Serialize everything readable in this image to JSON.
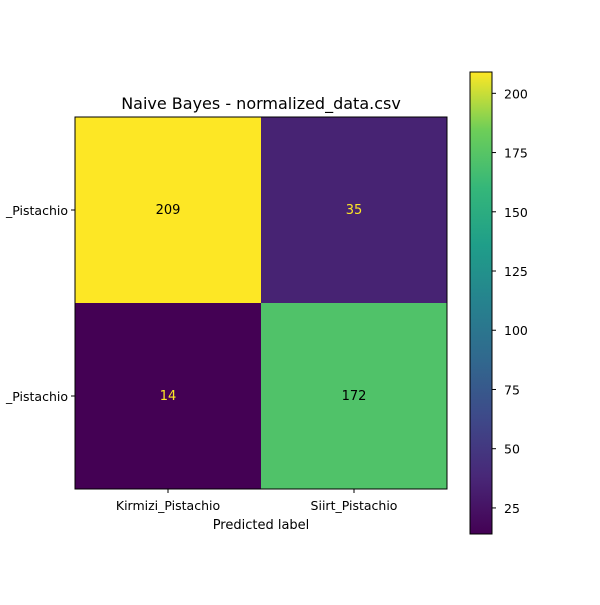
{
  "chart_data": {
    "type": "heatmap",
    "title": "Naive Bayes - normalized_data.csv",
    "xlabel": "Predicted label",
    "ylabel": "",
    "x_categories": [
      "Kirmizi_Pistachio",
      "Siirt_Pistachio"
    ],
    "y_tick_labels": [
      "_Pistachio",
      "_Pistachio"
    ],
    "values": [
      [
        209,
        35
      ],
      [
        14,
        172
      ]
    ],
    "colormap": "viridis",
    "colorbar": {
      "range": [
        14,
        209
      ],
      "ticks": [
        25,
        50,
        75,
        100,
        125,
        150,
        175,
        200
      ]
    },
    "text_color_dark": "#000000",
    "text_color_light": "#fde725"
  }
}
